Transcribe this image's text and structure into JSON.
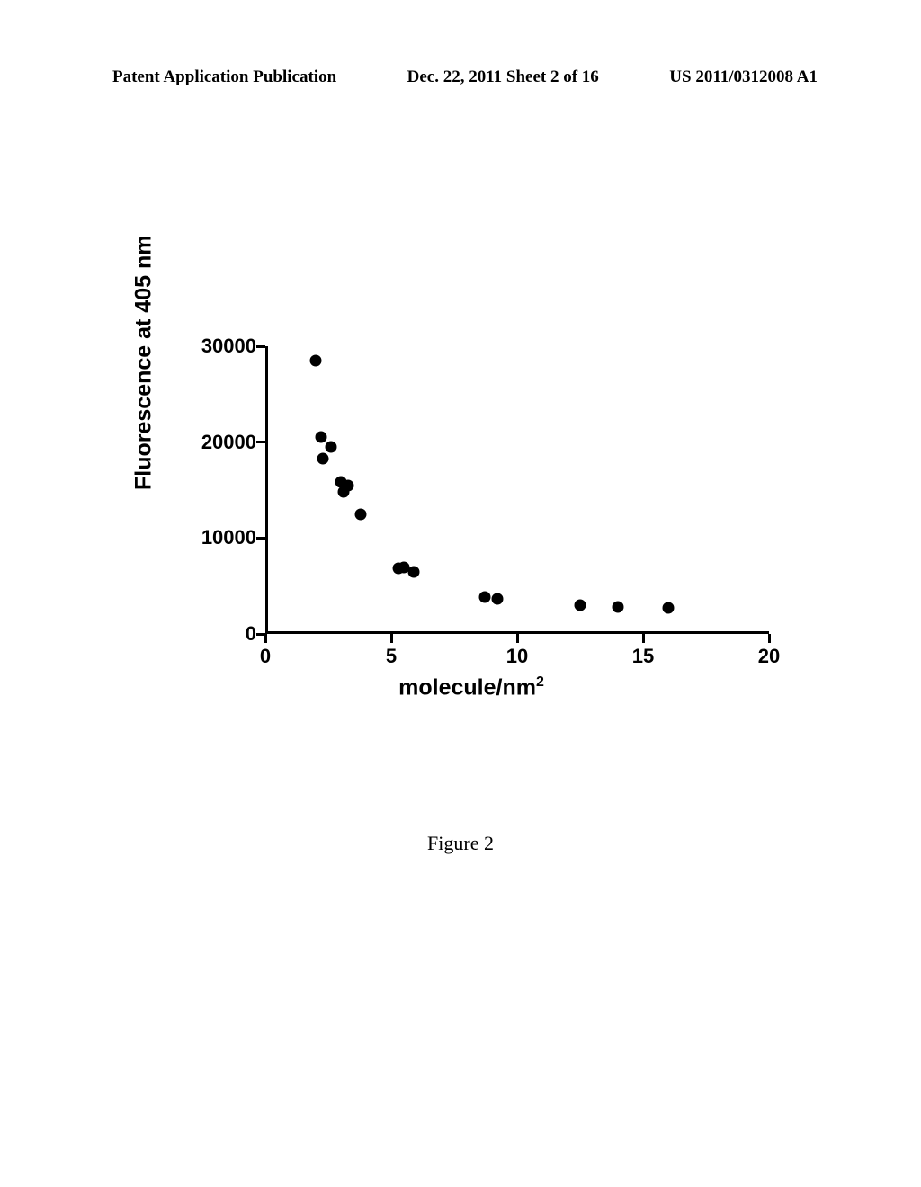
{
  "header": {
    "left": "Patent Application Publication",
    "center": "Dec. 22, 2011  Sheet 2 of 16",
    "right": "US 2011/0312008 A1"
  },
  "chart": {
    "type": "scatter",
    "ylabel": "Fluorescence at 405 nm",
    "xlabel_base": "molecule/nm",
    "xlabel_sup": "2",
    "xlim": [
      0,
      20
    ],
    "ylim": [
      0,
      30000
    ],
    "xticks": [
      0,
      5,
      10,
      15,
      20
    ],
    "yticks": [
      0,
      10000,
      20000,
      30000
    ],
    "ytick_labels": [
      "0",
      "10000",
      "20000",
      "30000"
    ],
    "xtick_labels": [
      "0",
      "5",
      "10",
      "15",
      "20"
    ],
    "marker_color": "#000000",
    "marker_size": 13,
    "background_color": "#ffffff",
    "axis_color": "#000000",
    "axis_width": 3,
    "data_points": [
      {
        "x": 2.0,
        "y": 28500
      },
      {
        "x": 2.2,
        "y": 20500
      },
      {
        "x": 2.6,
        "y": 19500
      },
      {
        "x": 2.3,
        "y": 18300
      },
      {
        "x": 3.0,
        "y": 15800
      },
      {
        "x": 3.3,
        "y": 15500
      },
      {
        "x": 3.1,
        "y": 14800
      },
      {
        "x": 3.8,
        "y": 12500
      },
      {
        "x": 5.3,
        "y": 6800
      },
      {
        "x": 5.5,
        "y": 6900
      },
      {
        "x": 5.9,
        "y": 6500
      },
      {
        "x": 8.7,
        "y": 3800
      },
      {
        "x": 9.2,
        "y": 3700
      },
      {
        "x": 12.5,
        "y": 3000
      },
      {
        "x": 14.0,
        "y": 2800
      },
      {
        "x": 16.0,
        "y": 2700
      }
    ]
  },
  "caption": "Figure 2"
}
